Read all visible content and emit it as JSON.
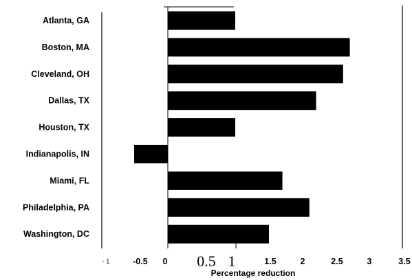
{
  "chart_data": {
    "type": "bar",
    "orientation": "horizontal",
    "title": "",
    "xlabel": "Percentage reduction",
    "ylabel": "",
    "categories": [
      "Atlanta, GA",
      "Boston, MA",
      "Cleveland, OH",
      "Dallas, TX",
      "Houston, TX",
      "Indianapolis, IN",
      "Miami, FL",
      "Philadelphia, PA",
      "Washington, DC"
    ],
    "values": [
      1.0,
      2.7,
      2.6,
      2.2,
      1.0,
      -0.5,
      1.7,
      2.1,
      1.5
    ],
    "xlim": [
      -1,
      3.5
    ],
    "x_ticks": [
      "- 1",
      "-0.5",
      "0",
      "0.5",
      "1",
      "1.5",
      "2",
      "2.5",
      "3",
      "3.5"
    ],
    "bar_color": "#000000",
    "grid": false
  }
}
